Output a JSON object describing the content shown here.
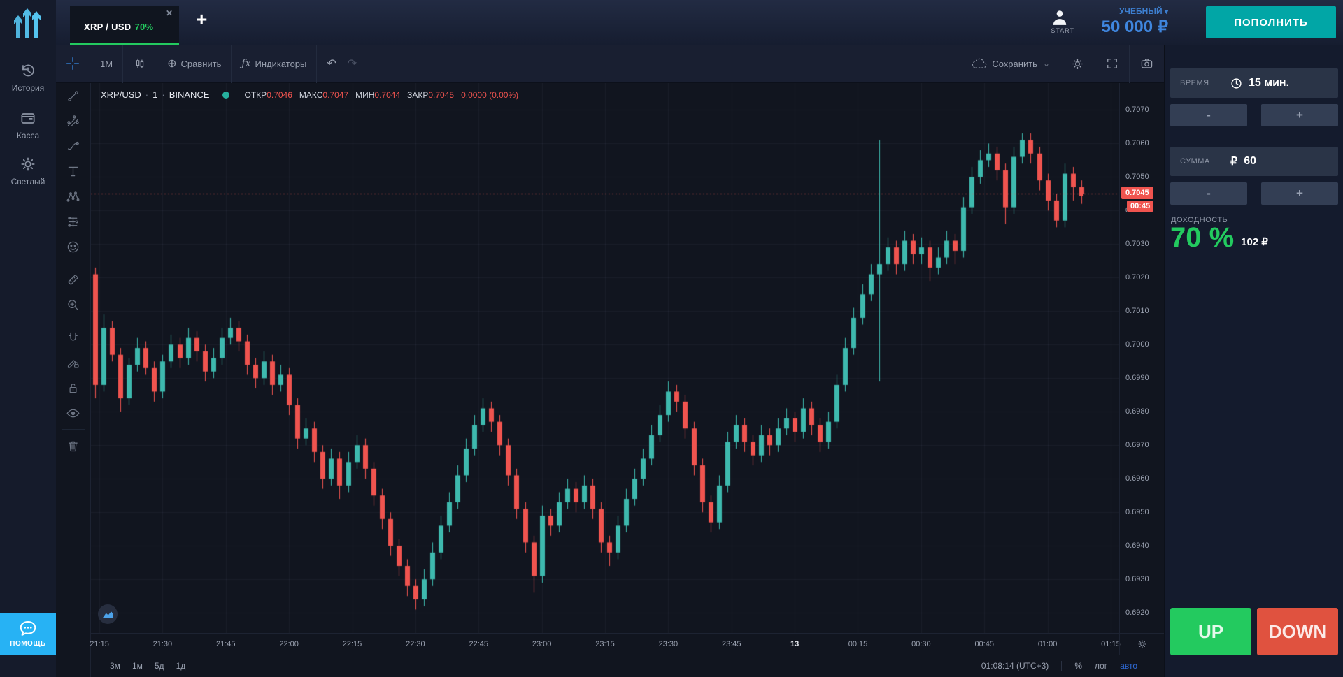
{
  "icons": {
    "close": "✕",
    "plus": "+",
    "caret_down": "▾",
    "chevron_down": "⌄",
    "undo": "↶",
    "redo": "↷",
    "compare_plus": "⊕",
    "fx": "ƒx",
    "rub": "₽"
  },
  "colors": {
    "candle_up": "#3eb9ae",
    "candle_down": "#f0544f",
    "badge_red": "#f0544f",
    "grid": "rgba(140,152,178,0.07)",
    "accent_green": "#23ca5f",
    "deposit_teal": "#01a6a6",
    "balance_blue": "#3f86de",
    "help_blue": "#27b2f4",
    "auto_blue": "#2f6bd8"
  },
  "topbar": {
    "tab": {
      "symbol": "XRP / USD",
      "payout": "70%"
    },
    "account_label": "START",
    "balance_type": "УЧЕБНЫЙ",
    "balance_amount": "50 000 ₽",
    "deposit_label": "ПОПОЛНИТЬ"
  },
  "sidebar": {
    "items": [
      {
        "icon": "history-icon",
        "label": "История"
      },
      {
        "icon": "wallet-icon",
        "label": "Касса"
      },
      {
        "icon": "sun-icon",
        "label": "Светлый"
      }
    ],
    "help_label": "помощь"
  },
  "toolbar": {
    "interval": "1M",
    "compare_label": "Сравнить",
    "indicators_label": "Индикаторы",
    "save_label": "Сохранить"
  },
  "chart_tools": [
    "trend-line",
    "fib-channel",
    "brush",
    "text",
    "xabcd-pattern",
    "forecast",
    "emoji",
    "|",
    "ruler",
    "zoom-in",
    "|",
    "magnet",
    "drawing-lock",
    "lock",
    "eye",
    "|",
    "trash"
  ],
  "legend": {
    "symbol": "XRP/USD",
    "sep": "·",
    "resolution": "1",
    "exchange": "BINANCE",
    "fields": [
      {
        "label": "ОТКР",
        "value": "0.7046"
      },
      {
        "label": "МАКС",
        "value": "0.7047"
      },
      {
        "label": "МИН",
        "value": "0.7044"
      },
      {
        "label": "ЗАКР",
        "value": "0.7045"
      }
    ],
    "change": "0.0000 (0.00%)"
  },
  "trade": {
    "time_label": "ВРЕМЯ",
    "time_value": "15 мин.",
    "minus": "-",
    "plus": "+",
    "amount_label": "СУММА",
    "amount_currency": "₽",
    "amount_value": "60",
    "payout_label": "ДОХОДНОСТЬ",
    "payout_percent": "70 %",
    "payout_amount": "102 ₽",
    "up_label": "UP",
    "down_label": "DOWN"
  },
  "price_axis": {
    "current_label": "0.7045",
    "countdown": "00:45"
  },
  "bottom_bar": {
    "ranges": [
      "3м",
      "1м",
      "5д",
      "1д"
    ],
    "clock": "01:08:14 (UTC+3)",
    "percent_label": "%",
    "log_label": "лог",
    "auto_label": "авто"
  },
  "chart_data": {
    "type": "candlestick",
    "title": "XRP/USD · 1 · BINANCE",
    "symbol": "XRP/USD",
    "interval_minutes": 1,
    "exchange": "BINANCE",
    "start_time": "21:14",
    "step_minutes": 2,
    "total_minutes": 244,
    "current_price": 0.7045,
    "ohlc_last": {
      "open": 0.7046,
      "high": 0.7047,
      "low": 0.7044,
      "close": 0.7045,
      "change": 0.0,
      "change_pct": 0.0
    },
    "price_scale": {
      "min": 0.6914,
      "max": 0.7078
    },
    "grid": true,
    "y_ticks": [
      "0.7070",
      "0.7060",
      "0.7050",
      "0.7040",
      "0.7030",
      "0.7020",
      "0.7010",
      "0.7000",
      "0.6990",
      "0.6980",
      "0.6970",
      "0.6960",
      "0.6950",
      "0.6940",
      "0.6930",
      "0.6920"
    ],
    "x_ticks": [
      {
        "label": "21:15",
        "m": 1
      },
      {
        "label": "21:30",
        "m": 16
      },
      {
        "label": "21:45",
        "m": 31
      },
      {
        "label": "22:00",
        "m": 46
      },
      {
        "label": "22:15",
        "m": 61
      },
      {
        "label": "22:30",
        "m": 76
      },
      {
        "label": "22:45",
        "m": 91
      },
      {
        "label": "23:00",
        "m": 106
      },
      {
        "label": "23:15",
        "m": 121
      },
      {
        "label": "23:30",
        "m": 136
      },
      {
        "label": "23:45",
        "m": 151
      },
      {
        "label": "13",
        "m": 166,
        "emph": true
      },
      {
        "label": "00:15",
        "m": 181
      },
      {
        "label": "00:30",
        "m": 196
      },
      {
        "label": "00:45",
        "m": 211
      },
      {
        "label": "01:00",
        "m": 226
      },
      {
        "label": "01:15",
        "m": 241
      }
    ],
    "candles": [
      [
        0.7021,
        0.7023,
        0.6984,
        0.6988
      ],
      [
        0.6988,
        0.7009,
        0.6986,
        0.7005
      ],
      [
        0.7005,
        0.7007,
        0.6995,
        0.6997
      ],
      [
        0.6997,
        0.6999,
        0.698,
        0.6984
      ],
      [
        0.6984,
        0.6996,
        0.6982,
        0.6994
      ],
      [
        0.6994,
        0.7002,
        0.6992,
        0.6999
      ],
      [
        0.6999,
        0.7001,
        0.6991,
        0.6993
      ],
      [
        0.6993,
        0.6995,
        0.6983,
        0.6986
      ],
      [
        0.6986,
        0.6997,
        0.6984,
        0.6995
      ],
      [
        0.6995,
        0.7003,
        0.6993,
        0.7
      ],
      [
        0.7,
        0.7002,
        0.6993,
        0.6996
      ],
      [
        0.6996,
        0.7005,
        0.6994,
        0.7002
      ],
      [
        0.7002,
        0.7004,
        0.6995,
        0.6998
      ],
      [
        0.6998,
        0.7,
        0.6989,
        0.6992
      ],
      [
        0.6992,
        0.6999,
        0.699,
        0.6996
      ],
      [
        0.6996,
        0.7005,
        0.6994,
        0.7002
      ],
      [
        0.7002,
        0.7008,
        0.7,
        0.7005
      ],
      [
        0.7005,
        0.7007,
        0.6998,
        0.7001
      ],
      [
        0.7001,
        0.7003,
        0.6991,
        0.6994
      ],
      [
        0.6994,
        0.6996,
        0.6987,
        0.699
      ],
      [
        0.699,
        0.6998,
        0.6988,
        0.6995
      ],
      [
        0.6995,
        0.6997,
        0.6985,
        0.6988
      ],
      [
        0.6988,
        0.6994,
        0.6986,
        0.6991
      ],
      [
        0.6991,
        0.6993,
        0.6979,
        0.6982
      ],
      [
        0.6982,
        0.6984,
        0.6969,
        0.6972
      ],
      [
        0.6972,
        0.6978,
        0.697,
        0.6975
      ],
      [
        0.6975,
        0.6977,
        0.6965,
        0.6968
      ],
      [
        0.6968,
        0.697,
        0.6957,
        0.696
      ],
      [
        0.696,
        0.6969,
        0.6958,
        0.6966
      ],
      [
        0.6966,
        0.6968,
        0.6954,
        0.6958
      ],
      [
        0.6958,
        0.6968,
        0.6956,
        0.6965
      ],
      [
        0.6965,
        0.6973,
        0.6963,
        0.697
      ],
      [
        0.697,
        0.6972,
        0.696,
        0.6963
      ],
      [
        0.6963,
        0.6965,
        0.6952,
        0.6955
      ],
      [
        0.6955,
        0.6957,
        0.6945,
        0.6948
      ],
      [
        0.6948,
        0.695,
        0.6937,
        0.694
      ],
      [
        0.694,
        0.6942,
        0.6931,
        0.6934
      ],
      [
        0.6934,
        0.6936,
        0.6925,
        0.6928
      ],
      [
        0.6928,
        0.693,
        0.6921,
        0.6924
      ],
      [
        0.6924,
        0.6933,
        0.6922,
        0.693
      ],
      [
        0.693,
        0.6941,
        0.6928,
        0.6938
      ],
      [
        0.6938,
        0.6949,
        0.6936,
        0.6946
      ],
      [
        0.6946,
        0.6956,
        0.6944,
        0.6953
      ],
      [
        0.6953,
        0.6964,
        0.6951,
        0.6961
      ],
      [
        0.6961,
        0.6972,
        0.6959,
        0.6969
      ],
      [
        0.6969,
        0.6979,
        0.6967,
        0.6976
      ],
      [
        0.6976,
        0.6984,
        0.6974,
        0.6981
      ],
      [
        0.6981,
        0.6983,
        0.6974,
        0.6977
      ],
      [
        0.6977,
        0.6979,
        0.6967,
        0.697
      ],
      [
        0.697,
        0.6972,
        0.6958,
        0.6961
      ],
      [
        0.6961,
        0.6963,
        0.6948,
        0.6951
      ],
      [
        0.6951,
        0.6953,
        0.6938,
        0.6941
      ],
      [
        0.6941,
        0.6943,
        0.6926,
        0.6931
      ],
      [
        0.6931,
        0.6952,
        0.6929,
        0.6949
      ],
      [
        0.6949,
        0.6951,
        0.6943,
        0.6946
      ],
      [
        0.6946,
        0.6956,
        0.6944,
        0.6953
      ],
      [
        0.6953,
        0.696,
        0.6951,
        0.6957
      ],
      [
        0.6957,
        0.6959,
        0.695,
        0.6953
      ],
      [
        0.6953,
        0.6961,
        0.6951,
        0.6958
      ],
      [
        0.6958,
        0.696,
        0.6948,
        0.6951
      ],
      [
        0.6951,
        0.6953,
        0.6938,
        0.6941
      ],
      [
        0.6941,
        0.6943,
        0.6934,
        0.6938
      ],
      [
        0.6938,
        0.6949,
        0.6936,
        0.6946
      ],
      [
        0.6946,
        0.6957,
        0.6944,
        0.6954
      ],
      [
        0.6954,
        0.6963,
        0.6952,
        0.696
      ],
      [
        0.696,
        0.6969,
        0.6958,
        0.6966
      ],
      [
        0.6966,
        0.6976,
        0.6964,
        0.6973
      ],
      [
        0.6973,
        0.6982,
        0.6971,
        0.6979
      ],
      [
        0.6979,
        0.6989,
        0.6977,
        0.6986
      ],
      [
        0.6986,
        0.6988,
        0.698,
        0.6983
      ],
      [
        0.6983,
        0.6985,
        0.6972,
        0.6975
      ],
      [
        0.6975,
        0.6977,
        0.6961,
        0.6964
      ],
      [
        0.6964,
        0.6966,
        0.695,
        0.6953
      ],
      [
        0.6953,
        0.6955,
        0.6944,
        0.6947
      ],
      [
        0.6947,
        0.6961,
        0.6945,
        0.6958
      ],
      [
        0.6958,
        0.6974,
        0.6956,
        0.6971
      ],
      [
        0.6971,
        0.6979,
        0.6969,
        0.6976
      ],
      [
        0.6976,
        0.6978,
        0.6968,
        0.6971
      ],
      [
        0.6971,
        0.6973,
        0.6964,
        0.6967
      ],
      [
        0.6967,
        0.6976,
        0.6965,
        0.6973
      ],
      [
        0.6973,
        0.6975,
        0.6967,
        0.697
      ],
      [
        0.697,
        0.6978,
        0.6968,
        0.6975
      ],
      [
        0.6975,
        0.6981,
        0.6973,
        0.6978
      ],
      [
        0.6978,
        0.698,
        0.6971,
        0.6974
      ],
      [
        0.6974,
        0.6984,
        0.6972,
        0.6981
      ],
      [
        0.6981,
        0.6983,
        0.6973,
        0.6976
      ],
      [
        0.6976,
        0.6978,
        0.6968,
        0.6971
      ],
      [
        0.6971,
        0.698,
        0.6969,
        0.6977
      ],
      [
        0.6977,
        0.6991,
        0.6975,
        0.6988
      ],
      [
        0.6988,
        0.7002,
        0.6986,
        0.6999
      ],
      [
        0.6999,
        0.7011,
        0.6997,
        0.7008
      ],
      [
        0.7008,
        0.7018,
        0.7006,
        0.7015
      ],
      [
        0.7015,
        0.7024,
        0.7013,
        0.7021
      ],
      [
        0.7021,
        0.7061,
        0.6989,
        0.7024
      ],
      [
        0.7024,
        0.7032,
        0.7022,
        0.7029
      ],
      [
        0.7029,
        0.7031,
        0.7021,
        0.7024
      ],
      [
        0.7024,
        0.7034,
        0.7022,
        0.7031
      ],
      [
        0.7031,
        0.7033,
        0.7024,
        0.7027
      ],
      [
        0.7027,
        0.7032,
        0.7024,
        0.7029
      ],
      [
        0.7029,
        0.7031,
        0.7019,
        0.7023
      ],
      [
        0.7023,
        0.7029,
        0.7021,
        0.7026
      ],
      [
        0.7026,
        0.7034,
        0.7024,
        0.7031
      ],
      [
        0.7031,
        0.7033,
        0.7024,
        0.7028
      ],
      [
        0.7028,
        0.7044,
        0.7026,
        0.7041
      ],
      [
        0.7041,
        0.7053,
        0.7039,
        0.705
      ],
      [
        0.705,
        0.7058,
        0.7048,
        0.7055
      ],
      [
        0.7055,
        0.706,
        0.7053,
        0.7057
      ],
      [
        0.7057,
        0.7059,
        0.7049,
        0.7052
      ],
      [
        0.7052,
        0.7054,
        0.7036,
        0.7041
      ],
      [
        0.7041,
        0.7059,
        0.7039,
        0.7056
      ],
      [
        0.7056,
        0.7063,
        0.7054,
        0.7061
      ],
      [
        0.7061,
        0.7063,
        0.7054,
        0.7057
      ],
      [
        0.7057,
        0.7059,
        0.7046,
        0.7049
      ],
      [
        0.7049,
        0.7051,
        0.704,
        0.7043
      ],
      [
        0.7043,
        0.7045,
        0.7035,
        0.7037
      ],
      [
        0.7037,
        0.7054,
        0.7035,
        0.7051
      ],
      [
        0.7051,
        0.7053,
        0.7043,
        0.7047
      ],
      [
        0.7047,
        0.7049,
        0.7042,
        0.7045
      ]
    ]
  }
}
